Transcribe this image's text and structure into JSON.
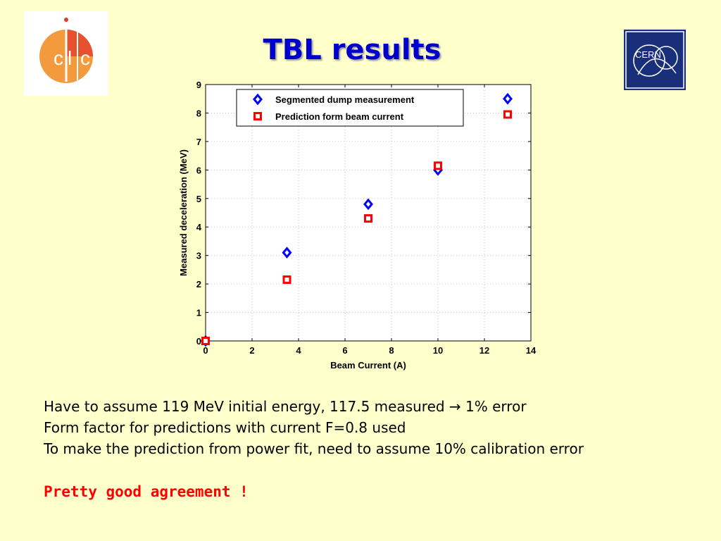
{
  "slide": {
    "title": "TBL results",
    "notes": [
      "Have to assume 119 MeV initial energy, 117.5 measured → 1% error",
      "Form factor for predictions with current F=0.8 used",
      "To make the prediction from power fit, need to assume 10% calibration error"
    ],
    "conclusion": "Pretty good agreement !",
    "logos": {
      "left": "clic-logo",
      "right": "cern-logo",
      "cern_text": "CERN"
    }
  },
  "colors": {
    "background": "#ffffcc",
    "title": "#0000cc",
    "conclusion": "#ff0000",
    "series_measured": "#0000ff",
    "series_prediction": "#ff0000",
    "clic_orange": "#f39a3c",
    "clic_red": "#e23a2a",
    "cern_blue": "#1a2f7a"
  },
  "chart_data": {
    "type": "scatter",
    "title": "",
    "xlabel": "Beam Current (A)",
    "ylabel": "Measured deceleration (MeV)",
    "xlim": [
      0,
      14
    ],
    "ylim": [
      0,
      9
    ],
    "xticks": [
      0,
      2,
      4,
      6,
      8,
      10,
      12,
      14
    ],
    "yticks": [
      0,
      1,
      2,
      3,
      4,
      5,
      6,
      7,
      8,
      9
    ],
    "grid": true,
    "legend_position": "top",
    "series": [
      {
        "name": "Segmented dump measurement",
        "marker": "diamond",
        "color": "#0000ff",
        "x": [
          0,
          3.5,
          7,
          10,
          13
        ],
        "y": [
          0,
          3.1,
          4.8,
          6.0,
          8.5
        ]
      },
      {
        "name": "Prediction form beam current",
        "marker": "square",
        "color": "#ff0000",
        "x": [
          0,
          3.5,
          7,
          10,
          13
        ],
        "y": [
          0,
          2.15,
          4.3,
          6.15,
          7.95
        ]
      }
    ]
  }
}
